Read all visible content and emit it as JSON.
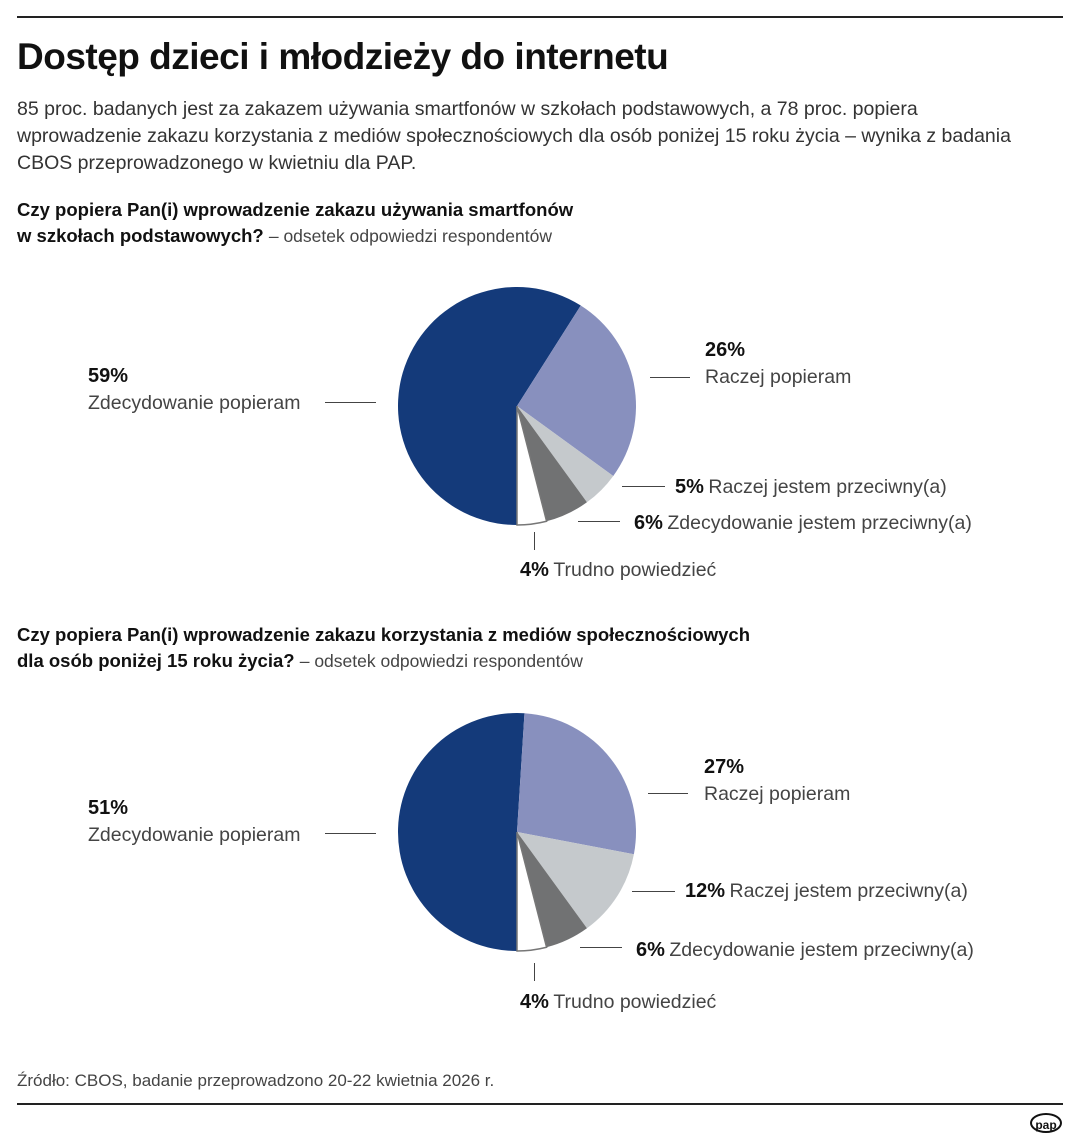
{
  "title": "Dostęp dzieci i młodzieży do internetu",
  "lead": "85 proc. badanych jest za zakazem używania smartfonów w szkołach podstawowych, a 78 proc. popiera wprowadzenie zakazu korzystania z mediów społecznościowych dla osób poniżej 15 roku życia – wynika z badania CBOS przeprowadzonego w kwietniu dla PAP.",
  "source": "Źródło: CBOS, badanie przeprowadzono 20-22 kwietnia 2026 r.",
  "logo": "pap",
  "colors": {
    "zdecydowanie_popieram": "#143a7a",
    "raczej_popieram": "#8890be",
    "raczej_przeciwny": "#c5c9cc",
    "zdecydowanie_przeciwny": "#717273",
    "trudno": "#ffffff"
  },
  "chart_data": [
    {
      "type": "pie",
      "title_bold_1": "Czy popiera Pan(i) wprowadzenie zakazu używania smartfonów",
      "title_bold_2": "w szkołach podstawowych?",
      "subtitle": "– odsetek odpowiedzi respondentów",
      "start": "bottom",
      "direction": "clockwise",
      "slices": [
        {
          "label": "Zdecydowanie popieram",
          "value": 59,
          "value_label": "59%"
        },
        {
          "label": "Raczej popieram",
          "value": 26,
          "value_label": "26%"
        },
        {
          "label": "Raczej jestem przeciwny(a)",
          "value": 5,
          "value_label": "5%"
        },
        {
          "label": "Zdecydowanie jestem przeciwny(a)",
          "value": 6,
          "value_label": "6%"
        },
        {
          "label": "Trudno powiedzieć",
          "value": 4,
          "value_label": "4%"
        }
      ]
    },
    {
      "type": "pie",
      "title_bold_1": "Czy popiera Pan(i) wprowadzenie zakazu korzystania z mediów społecznościowych",
      "title_bold_2": "dla osób poniżej 15 roku życia?",
      "subtitle": "– odsetek odpowiedzi respondentów",
      "start": "bottom",
      "direction": "clockwise",
      "slices": [
        {
          "label": "Zdecydowanie popieram",
          "value": 51,
          "value_label": "51%"
        },
        {
          "label": "Raczej popieram",
          "value": 27,
          "value_label": "27%"
        },
        {
          "label": "Raczej jestem przeciwny(a)",
          "value": 12,
          "value_label": "12%"
        },
        {
          "label": "Zdecydowanie jestem przeciwny(a)",
          "value": 6,
          "value_label": "6%"
        },
        {
          "label": "Trudno powiedzieć",
          "value": 4,
          "value_label": "4%"
        }
      ]
    }
  ]
}
